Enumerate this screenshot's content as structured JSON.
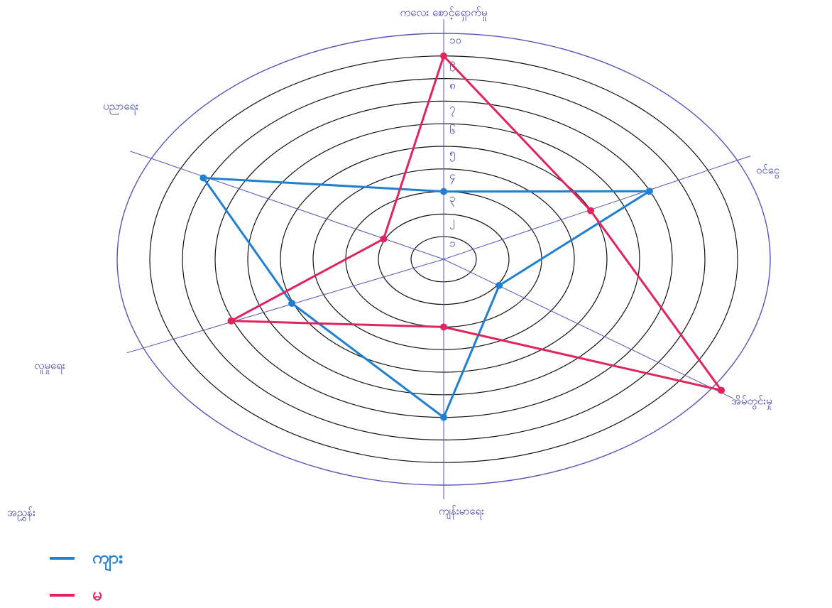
{
  "chart_data": {
    "type": "radar",
    "categories": [
      "ကလေး စောင့်ရှောက်မှု",
      "ဝင်ငွေ",
      "အိမ်တွင်းမှု",
      "ကျန်းမာရေး",
      "လူမှုရေး",
      "ပညာရေး"
    ],
    "series": [
      {
        "name": "ကျား",
        "color": "#1f7fd0",
        "values": [
          3,
          7,
          2,
          7,
          5,
          8
        ]
      },
      {
        "name": "မ",
        "color": "#e0245e",
        "values": [
          9,
          5,
          10,
          3,
          7,
          2
        ]
      }
    ],
    "legend_title": "အညွှန်း",
    "rlim": [
      0,
      10
    ],
    "rticks": [
      {
        "value": 1,
        "label": "၁"
      },
      {
        "value": 2,
        "label": "၂"
      },
      {
        "value": 3,
        "label": "၃"
      },
      {
        "value": 4,
        "label": "၄"
      },
      {
        "value": 5,
        "label": "၅"
      },
      {
        "value": 6,
        "label": "၆"
      },
      {
        "value": 7,
        "label": "၇"
      },
      {
        "value": 8,
        "label": "၈"
      },
      {
        "value": 9,
        "label": "၉"
      },
      {
        "value": 10,
        "label": "၁၀"
      }
    ]
  }
}
